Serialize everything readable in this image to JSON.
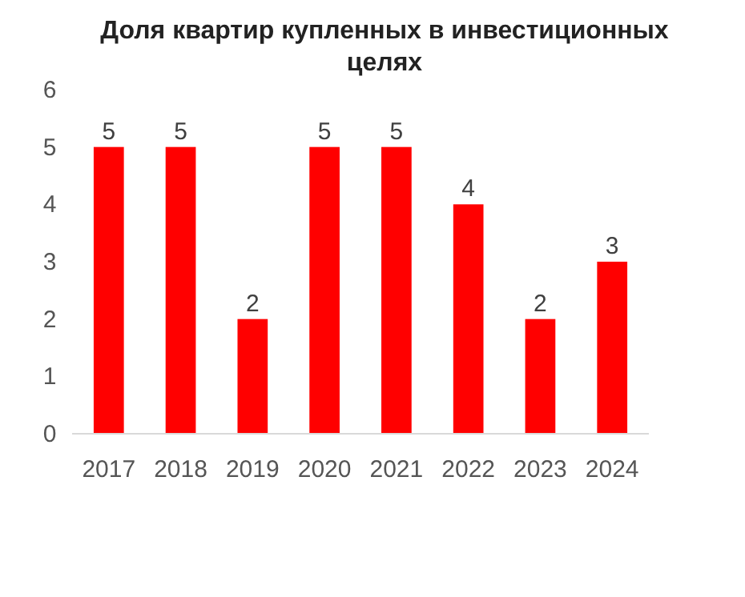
{
  "chart_data": {
    "type": "bar",
    "title": "Доля квартир купленных в инвестиционных целях",
    "categories": [
      "2017",
      "2018",
      "2019",
      "2020",
      "2021",
      "2022",
      "2023",
      "2024"
    ],
    "values": [
      5,
      5,
      2,
      5,
      5,
      4,
      2,
      3
    ],
    "color": "#ff0000",
    "ylim": [
      0,
      6
    ],
    "yticks": [
      0,
      1,
      2,
      3,
      4,
      5,
      6
    ],
    "grid": false,
    "data_labels": true
  }
}
